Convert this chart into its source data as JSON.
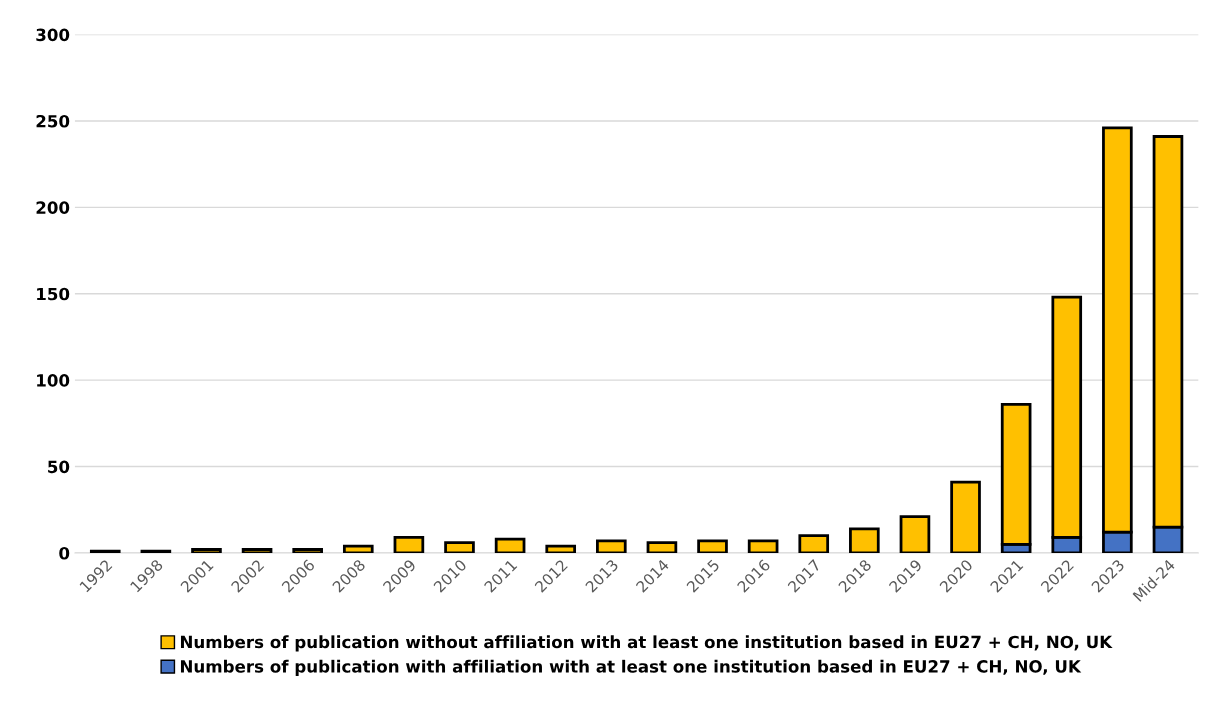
{
  "chart_data": {
    "type": "bar",
    "stacked": true,
    "categories": [
      "1992",
      "1998",
      "2001",
      "2002",
      "2006",
      "2008",
      "2009",
      "2010",
      "2011",
      "2012",
      "2013",
      "2014",
      "2015",
      "2016",
      "2017",
      "2018",
      "2019",
      "2020",
      "2021",
      "2022",
      "2023",
      "Mid-24"
    ],
    "series": [
      {
        "name": "Numbers of publication with affiliation with at least one institution based in EU27 + CH, NO, UK",
        "color": "#4472c4",
        "values": [
          0,
          0,
          0,
          0,
          0,
          0,
          0,
          0,
          null,
          0,
          0,
          0,
          0,
          null,
          0,
          null,
          null,
          0,
          5,
          9,
          12,
          15
        ]
      },
      {
        "name": "Numbers of publication without affiliation with at least one institution based in EU27 + CH, NO, UK",
        "color": "#ffc000",
        "values": [
          1,
          1,
          2,
          2,
          2,
          4,
          9,
          6,
          8,
          4,
          7,
          6,
          7,
          7,
          10,
          14,
          21,
          41,
          81,
          139,
          234,
          226
        ]
      }
    ],
    "ylim": [
      0,
      300
    ],
    "yticks": [
      0,
      50,
      100,
      150,
      200,
      250,
      300
    ],
    "grid": "y",
    "legend": "bottom"
  }
}
